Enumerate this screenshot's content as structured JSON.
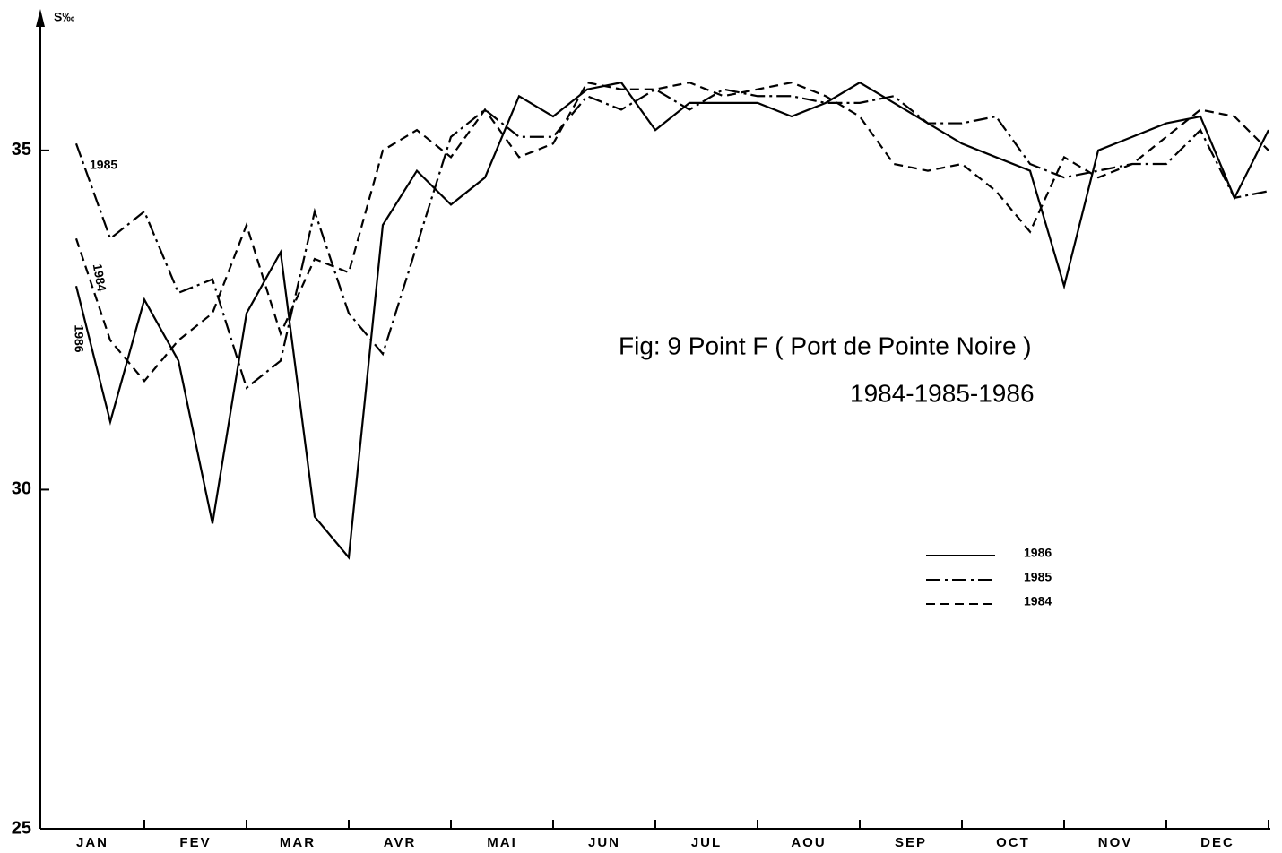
{
  "chart_data": {
    "type": "line",
    "title": "Fig: 9  Point F ( Port de Pointe Noire )",
    "subtitle": "1984-1985-1986",
    "y_label": "S‰",
    "categories": [
      null,
      "JAN",
      null,
      null,
      "FEV",
      null,
      null,
      "MAR",
      null,
      null,
      "AVR",
      null,
      null,
      "MAI",
      null,
      null,
      "JUN",
      null,
      null,
      "JUL",
      null,
      null,
      "AOU",
      null,
      null,
      "SEP",
      null,
      null,
      "OCT",
      null,
      null,
      "NOV",
      null,
      null,
      "DEC",
      null
    ],
    "series": [
      {
        "name": "1986",
        "color": "#000000",
        "style": "solid",
        "values": [
          33.0,
          31.0,
          32.8,
          31.9,
          29.5,
          32.6,
          33.5,
          29.6,
          29.0,
          33.9,
          34.7,
          34.2,
          34.6,
          35.8,
          35.5,
          35.9,
          36.0,
          35.3,
          35.7,
          35.7,
          35.7,
          35.5,
          35.7,
          36.0,
          35.7,
          35.4,
          35.1,
          34.9,
          34.7,
          33.0,
          35.0,
          35.2,
          35.4,
          35.5,
          34.3,
          35.3
        ]
      },
      {
        "name": "1985",
        "color": "#000000",
        "style": "dashdot",
        "values": [
          35.1,
          33.7,
          34.1,
          32.9,
          33.1,
          31.5,
          31.9,
          34.1,
          32.6,
          32.0,
          33.6,
          35.2,
          35.6,
          35.2,
          35.2,
          35.8,
          35.6,
          35.9,
          35.6,
          35.9,
          35.8,
          35.8,
          35.7,
          35.7,
          35.8,
          35.4,
          35.4,
          35.5,
          34.8,
          34.6,
          34.7,
          34.8,
          34.8,
          35.3,
          34.3,
          34.4
        ]
      },
      {
        "name": "1984",
        "color": "#000000",
        "style": "dashed",
        "values": [
          33.7,
          32.2,
          31.6,
          32.2,
          32.6,
          33.9,
          32.3,
          33.4,
          33.2,
          35.0,
          35.3,
          34.9,
          35.6,
          34.9,
          35.1,
          36.0,
          35.9,
          35.9,
          36.0,
          35.8,
          35.9,
          36.0,
          35.8,
          35.5,
          34.8,
          34.7,
          34.8,
          34.4,
          33.8,
          34.9,
          34.6,
          34.8,
          35.2,
          35.6,
          35.5,
          35.0
        ]
      }
    ],
    "ylim": [
      25,
      36.9
    ],
    "yticks": [
      25,
      30,
      35
    ],
    "grid": false,
    "legend": "right"
  }
}
